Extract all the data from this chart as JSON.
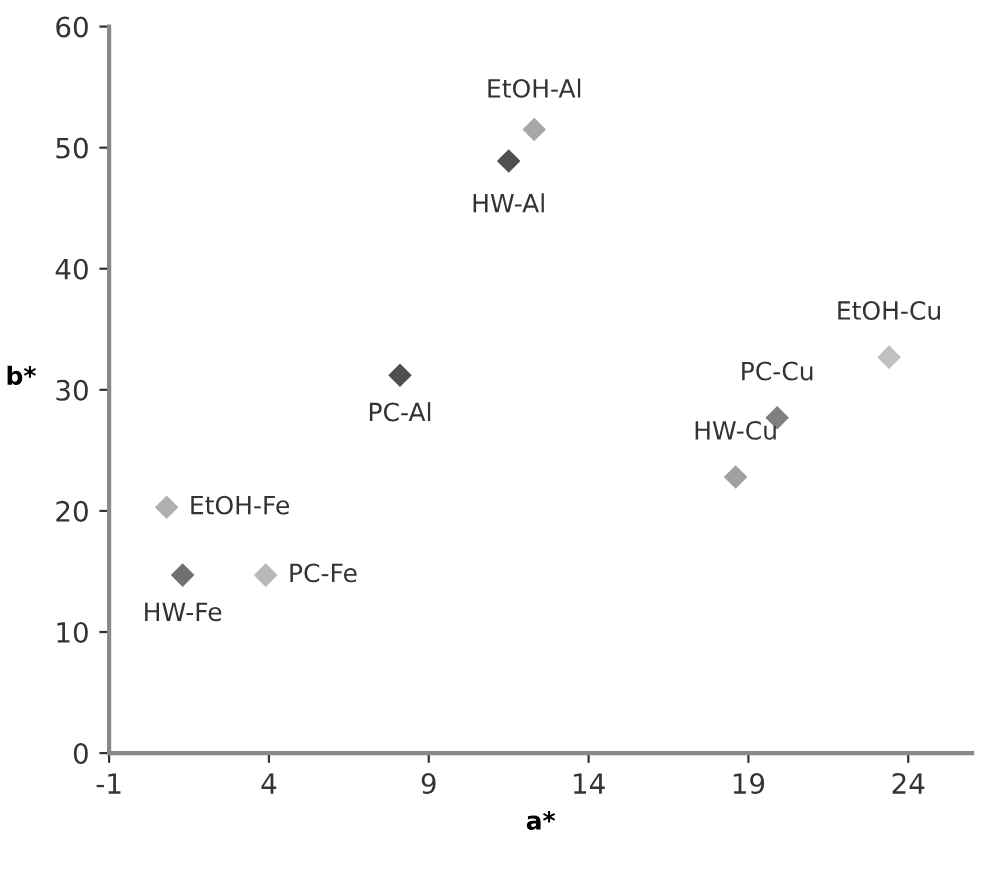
{
  "chart_data": {
    "type": "scatter",
    "xlabel": "a*",
    "ylabel": "b*",
    "x": [
      0.8,
      1.3,
      3.9,
      8.1,
      11.5,
      12.3,
      18.6,
      19.9,
      23.4
    ],
    "values": [
      20.3,
      14.7,
      14.7,
      31.2,
      48.9,
      51.5,
      22.8,
      27.7,
      32.7
    ],
    "colors": [
      "#b0b0b0",
      "#707070",
      "#b8b8b8",
      "#505050",
      "#505050",
      "#a8a8a8",
      "#a0a0a0",
      "#808080",
      "#c0c0c0"
    ],
    "marker": "diamond",
    "annotations": [
      {
        "text": "EtOH-Fe",
        "x": 0.8,
        "y": 20.3
      },
      {
        "text": "HW-Fe",
        "x": 1.3,
        "y": 14.7
      },
      {
        "text": "PC-Fe",
        "x": 3.9,
        "y": 14.7
      },
      {
        "text": "PC-Al",
        "x": 8.1,
        "y": 31.2
      },
      {
        "text": "HW-Al",
        "x": 11.5,
        "y": 48.9
      },
      {
        "text": "EtOH-Al",
        "x": 12.3,
        "y": 51.5
      },
      {
        "text": "HW-Cu",
        "x": 18.6,
        "y": 22.8
      },
      {
        "text": "PC-Cu",
        "x": 19.9,
        "y": 27.7
      },
      {
        "text": "EtOH-Cu",
        "x": 23.4,
        "y": 32.7
      }
    ],
    "xlim": [
      -1,
      26
    ],
    "ylim": [
      0,
      60
    ],
    "xticks": [
      -1,
      4,
      9,
      14,
      19,
      24
    ],
    "yticks": [
      0,
      10,
      20,
      30,
      40,
      50,
      60
    ],
    "grid": false
  }
}
